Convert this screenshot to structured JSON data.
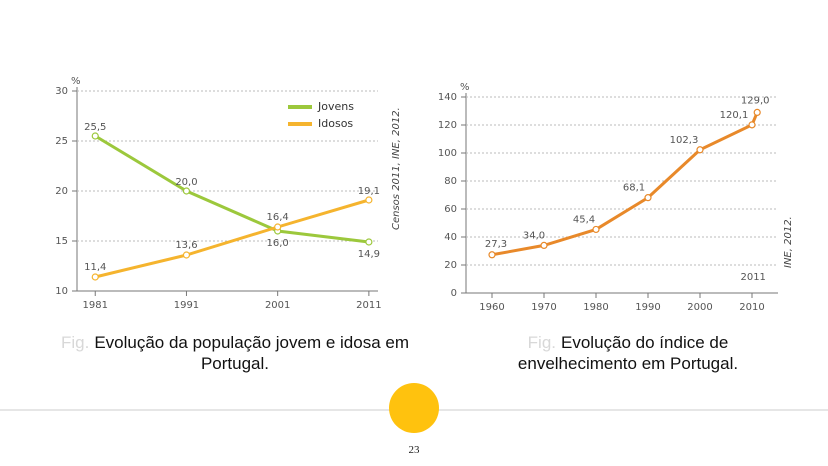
{
  "chart_data": [
    {
      "type": "line",
      "y_unit": "%",
      "x": [
        1981,
        1991,
        2001,
        2011
      ],
      "xlim": [
        1979,
        2012
      ],
      "xticks": [
        1981,
        1991,
        2001,
        2011
      ],
      "ylim": [
        10,
        30
      ],
      "yticks": [
        10,
        15,
        20,
        25,
        30
      ],
      "grid": true,
      "legend": "top-right",
      "source": "Censos 2011, INE, 2012.",
      "series": [
        {
          "name": "Jovens",
          "color": "#9cc83c",
          "values": [
            25.5,
            20.0,
            16.0,
            14.9
          ],
          "value_labels": [
            "25,5",
            "20,0",
            "16,0",
            "14,9"
          ]
        },
        {
          "name": "Idosos",
          "color": "#f5b42e",
          "values": [
            11.4,
            13.6,
            16.4,
            19.1
          ],
          "value_labels": [
            "11,4",
            "13,6",
            "16,4",
            "19,1"
          ]
        }
      ]
    },
    {
      "type": "line",
      "y_unit": "%",
      "x": [
        1960,
        1970,
        1980,
        1990,
        2000,
        2010,
        2011
      ],
      "xlim": [
        1955,
        2015
      ],
      "xticks": [
        1960,
        1970,
        1980,
        1990,
        2000,
        2010
      ],
      "ylim": [
        0,
        140
      ],
      "yticks": [
        0,
        20,
        40,
        60,
        80,
        100,
        120,
        140
      ],
      "grid": true,
      "annotation": "2011",
      "source": "INE, 2012.",
      "series": [
        {
          "name": "Índice de envelhecimento",
          "color": "#e8892a",
          "values": [
            27.3,
            34.0,
            45.4,
            68.1,
            102.3,
            120.1,
            129.0
          ],
          "value_labels": [
            "27,3",
            "34,0",
            "45,4",
            "68,1",
            "102,3",
            "120,1",
            "129,0"
          ]
        }
      ]
    }
  ],
  "captions": [
    {
      "label": "Fig.",
      "text": "Evolução da população jovem e idosa em Portugal."
    },
    {
      "label": "Fig.",
      "text": "Evolução do índice de envelhecimento em Portugal."
    }
  ],
  "page_number": "23"
}
